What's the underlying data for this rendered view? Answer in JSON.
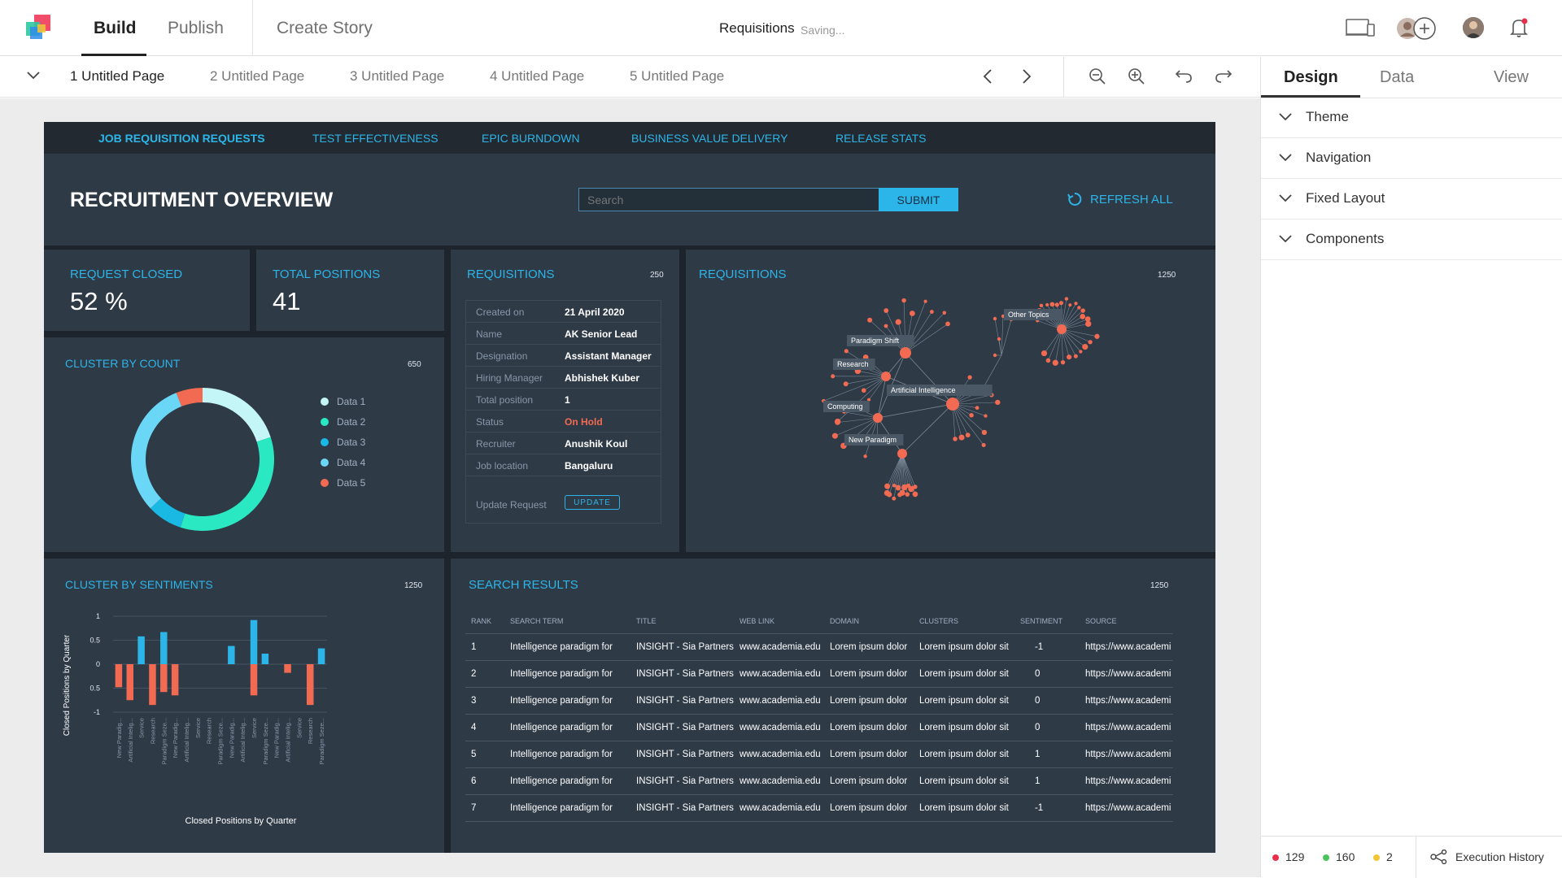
{
  "app": {
    "nav": {
      "build": "Build",
      "publish": "Publish",
      "create_story": "Create Story"
    },
    "document": {
      "title": "Requisitions",
      "status": "Saving..."
    }
  },
  "pages": [
    "1 Untitled Page",
    "2 Untitled Page",
    "3 Untitled Page",
    "4 Untitled Page",
    "5 Untitled Page"
  ],
  "right_panel": {
    "tabs": [
      "Design",
      "Data",
      "View"
    ],
    "sections": [
      "Theme",
      "Navigation",
      "Fixed Layout",
      "Components"
    ],
    "status": {
      "errors": "129",
      "success": "160",
      "warnings": "2",
      "execution_history": "Execution History"
    }
  },
  "colors": {
    "accent": "#2cb5e8",
    "error": "#f16a51",
    "panel": "#2f3a47",
    "dash_bg": "#1e242b"
  },
  "dashboard": {
    "tabs": [
      "JOB REQUISITION REQUESTS",
      "TEST EFFECTIVENESS",
      "EPIC BURNDOWN",
      "BUSINESS VALUE DELIVERY",
      "RELEASE STATS"
    ],
    "title": "RECRUITMENT OVERVIEW",
    "search": {
      "placeholder": "Search",
      "submit": "SUBMIT"
    },
    "refresh": "REFRESH ALL",
    "kpis": {
      "request_closed": {
        "label": "REQUEST CLOSED",
        "value": "52 %"
      },
      "total_positions": {
        "label": "TOTAL POSITIONS",
        "value": "41"
      }
    },
    "requisition": {
      "title": "REQUISITIONS",
      "meta": "250",
      "rows": [
        {
          "label": "Created on",
          "value": "21 April 2020"
        },
        {
          "label": "Name",
          "value": "AK Senior Lead"
        },
        {
          "label": "Designation",
          "value": "Assistant Manager"
        },
        {
          "label": "Hiring Manager",
          "value": "Abhishek Kuber"
        },
        {
          "label": "Total position",
          "value": "1"
        },
        {
          "label": "Status",
          "value": "On Hold"
        },
        {
          "label": "Recruiter",
          "value": "Anushik Koul"
        },
        {
          "label": "Job location",
          "value": "Bangaluru"
        }
      ],
      "update_label": "Update Request",
      "update_button": "UPDATE"
    },
    "network": {
      "title": "REQUISITIONS",
      "meta": "1250",
      "nodes": [
        "Paradigm Shift",
        "Research",
        "Artificial Intelligence",
        "Computing",
        "New Paradigm",
        "Other Topics"
      ]
    },
    "cluster_count": {
      "title": "CLUSTER BY COUNT",
      "meta": "650"
    },
    "cluster_sentiments": {
      "title": "CLUSTER BY SENTIMENTS",
      "meta": "1250"
    },
    "search_results": {
      "title": "SEARCH RESULTS",
      "meta": "1250",
      "columns": [
        "RANK",
        "SEARCH TERM",
        "TITLE",
        "WEB LINK",
        "DOMAIN",
        "CLUSTERS",
        "SENTIMENT",
        "SOURCE"
      ],
      "rows": [
        {
          "rank": "1",
          "term": "Intelligence paradigm for",
          "title": "INSIGHT - Sia Partners",
          "link": "www.academia.edu",
          "domain": "Lorem ipsum dolor",
          "clusters": "Lorem ipsum dolor sit",
          "sentiment": "-1",
          "source": "https://www.academi"
        },
        {
          "rank": "2",
          "term": "Intelligence paradigm for",
          "title": "INSIGHT - Sia Partners",
          "link": "www.academia.edu",
          "domain": "Lorem ipsum dolor",
          "clusters": "Lorem ipsum dolor sit",
          "sentiment": "0",
          "source": "https://www.academi"
        },
        {
          "rank": "3",
          "term": "Intelligence paradigm for",
          "title": "INSIGHT - Sia Partners",
          "link": "www.academia.edu",
          "domain": "Lorem ipsum dolor",
          "clusters": "Lorem ipsum dolor sit",
          "sentiment": "0",
          "source": "https://www.academi"
        },
        {
          "rank": "4",
          "term": "Intelligence paradigm for",
          "title": "INSIGHT - Sia Partners",
          "link": "www.academia.edu",
          "domain": "Lorem ipsum dolor",
          "clusters": "Lorem ipsum dolor sit",
          "sentiment": "0",
          "source": "https://www.academi"
        },
        {
          "rank": "5",
          "term": "Intelligence paradigm for",
          "title": "INSIGHT - Sia Partners",
          "link": "www.academia.edu",
          "domain": "Lorem ipsum dolor",
          "clusters": "Lorem ipsum dolor sit",
          "sentiment": "1",
          "source": "https://www.academi"
        },
        {
          "rank": "6",
          "term": "Intelligence paradigm for",
          "title": "INSIGHT - Sia Partners",
          "link": "www.academia.edu",
          "domain": "Lorem ipsum dolor",
          "clusters": "Lorem ipsum dolor sit",
          "sentiment": "1",
          "source": "https://www.academi"
        },
        {
          "rank": "7",
          "term": "Intelligence paradigm for",
          "title": "INSIGHT - Sia Partners",
          "link": "www.academia.edu",
          "domain": "Lorem ipsum dolor",
          "clusters": "Lorem ipsum dolor sit",
          "sentiment": "-1",
          "source": "https://www.academi"
        }
      ]
    }
  },
  "chart_data": [
    {
      "type": "pie",
      "title": "CLUSTER BY COUNT",
      "donut": true,
      "legend_position": "right",
      "series": [
        {
          "name": "Data 1",
          "value": 20,
          "color": "#c4f5f7"
        },
        {
          "name": "Data 2",
          "value": 35,
          "color": "#2ae8c2"
        },
        {
          "name": "Data 3",
          "value": 8,
          "color": "#19b9e4"
        },
        {
          "name": "Data 4",
          "value": 31,
          "color": "#6ad7f7"
        },
        {
          "name": "Data 5",
          "value": 6,
          "color": "#f16a51"
        }
      ]
    },
    {
      "type": "bar",
      "title": "CLUSTER BY SENTIMENTS",
      "xlabel": "Closed Positions by Quarter",
      "ylabel": "Closed Positions by Quarter",
      "ylim": [
        -1,
        1
      ],
      "yticks": [
        "1",
        "0.5",
        "0",
        "0.5",
        "-1"
      ],
      "grid": true,
      "categories": [
        "New Paradig...",
        "Artificial Intelig...",
        "Service",
        "Research",
        "Paradigm Seze...",
        "New Paradig...",
        "Artificial Intelig...",
        "Service",
        "Research",
        "Paradigm Seze...",
        "New Paradig...",
        "Artificial Intelig...",
        "Service",
        "Paradigm Seze...",
        "New Paradig...",
        "Artificial Intelig...",
        "Service",
        "Research",
        "Paradigm Seze..."
      ],
      "series": [
        {
          "color": "#f16a51",
          "values": [
            -0.48,
            -0.75,
            0,
            -0.85,
            -0.58,
            -0.65,
            0,
            0,
            0,
            0,
            0,
            0,
            -0.65,
            0,
            0,
            -0.18,
            0,
            -0.85,
            0
          ]
        },
        {
          "color": "#2cb5e8",
          "values": [
            0,
            0,
            0.58,
            0,
            0.67,
            0,
            0,
            0,
            0,
            0,
            0.38,
            0,
            0.92,
            0.22,
            0,
            0,
            0,
            0,
            0.33
          ]
        }
      ]
    }
  ]
}
